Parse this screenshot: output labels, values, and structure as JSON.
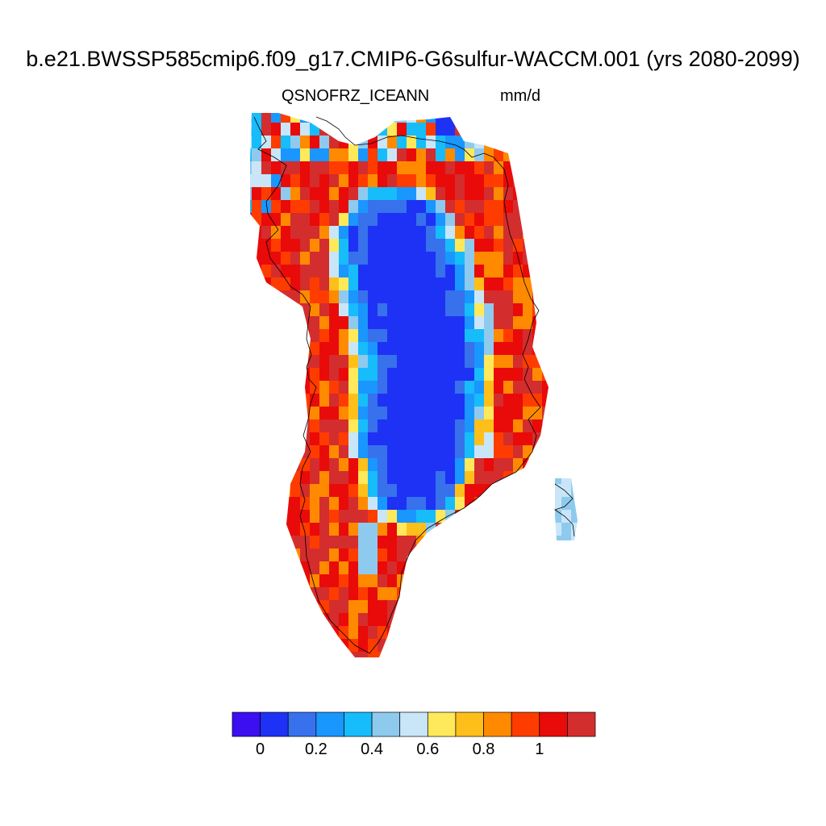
{
  "title": "b.e21.BWSSP585cmip6.f09_g17.CMIP6-G6sulfur-WACCM.001 (yrs 2080-2099)",
  "variable": "QSNOFRZ_ICE",
  "season": "ANN",
  "units": "mm/d",
  "colorbar": {
    "colors": [
      "#3b0ff0",
      "#1e32f5",
      "#3771ec",
      "#1a96ff",
      "#17bcfb",
      "#8ecaee",
      "#c8e6f8",
      "#fee95a",
      "#ffbf1a",
      "#ff8a00",
      "#ff3c00",
      "#e90a0a",
      "#d42d2d"
    ],
    "tick_labels": [
      "0",
      "0.2",
      "0.4",
      "0.6",
      "0.8",
      "1"
    ],
    "tick_values": [
      0,
      0.2,
      0.4,
      0.6,
      0.8,
      1.0
    ],
    "bounds": [
      -0.1,
      1.2
    ]
  }
}
